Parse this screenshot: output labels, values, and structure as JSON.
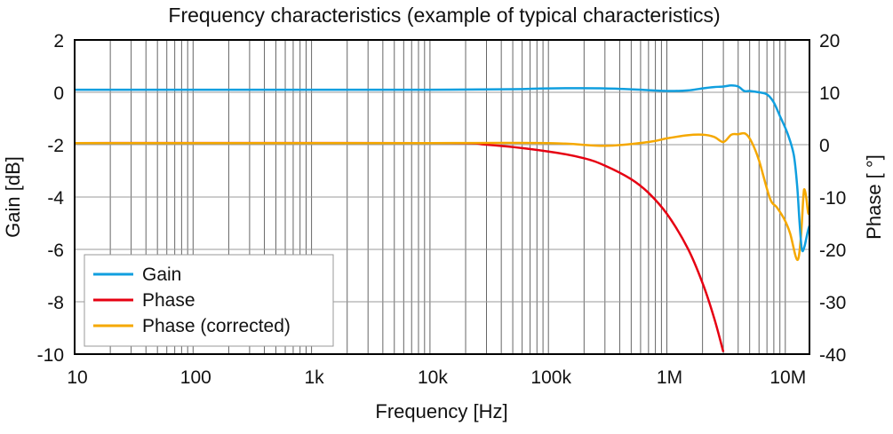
{
  "chart_data": {
    "type": "line",
    "title": "Frequency characteristics (example of typical characteristics)",
    "xlabel": "Frequency [Hz]",
    "ylabel": "Gain [dB]",
    "y2label": "Phase [ °]",
    "xscale": "log",
    "xlim": [
      10,
      16000000
    ],
    "ylim": [
      -10,
      2
    ],
    "y2lim": [
      -40,
      20
    ],
    "grid": true,
    "legend_position": "bottom-left",
    "x_ticks": [
      {
        "value": 10,
        "label": "10"
      },
      {
        "value": 100,
        "label": "100"
      },
      {
        "value": 1000,
        "label": "1k"
      },
      {
        "value": 10000,
        "label": "10k"
      },
      {
        "value": 100000,
        "label": "100k"
      },
      {
        "value": 1000000,
        "label": "1M"
      },
      {
        "value": 10000000,
        "label": "10M"
      }
    ],
    "y_ticks": [
      {
        "value": 2,
        "label": "2"
      },
      {
        "value": 0,
        "label": "0"
      },
      {
        "value": -2,
        "label": "-2"
      },
      {
        "value": -4,
        "label": "-4"
      },
      {
        "value": -6,
        "label": "-6"
      },
      {
        "value": -8,
        "label": "-8"
      },
      {
        "value": -10,
        "label": "-10"
      }
    ],
    "y2_ticks": [
      {
        "value": 20,
        "label": "20"
      },
      {
        "value": 10,
        "label": "10"
      },
      {
        "value": 0,
        "label": "0"
      },
      {
        "value": -10,
        "label": "-10"
      },
      {
        "value": -20,
        "label": "-20"
      },
      {
        "value": -30,
        "label": "-30"
      },
      {
        "value": -40,
        "label": "-40"
      }
    ],
    "series": [
      {
        "name": "Gain",
        "axis": "left",
        "color": "#109fdf",
        "x": [
          10,
          1000,
          10000,
          50000,
          100000,
          300000,
          700000,
          1000000,
          1500000,
          2000000,
          2500000,
          3000000,
          3500000,
          4000000,
          4500000,
          5000000,
          6000000,
          7000000,
          7900000,
          9000000,
          10500000,
          11800000,
          12600000,
          13200000,
          13800000,
          14500000,
          15500000,
          16000000
        ],
        "y": [
          0.1,
          0.1,
          0.1,
          0.12,
          0.15,
          0.15,
          0.08,
          0.05,
          0.07,
          0.15,
          0.2,
          0.22,
          0.26,
          0.22,
          0.05,
          0.05,
          0.0,
          -0.08,
          -0.35,
          -0.9,
          -1.6,
          -2.4,
          -3.6,
          -5.0,
          -6.0,
          -5.9,
          -5.3,
          -5.1
        ]
      },
      {
        "name": "Phase",
        "axis": "right",
        "color": "#e60012",
        "x": [
          10,
          10000,
          30000,
          100000,
          200000,
          300000,
          500000,
          700000,
          1000000,
          1500000,
          2000000,
          2500000,
          3000000
        ],
        "y": [
          0.3,
          0.3,
          0.0,
          -1.3,
          -2.6,
          -4.0,
          -6.6,
          -9.2,
          -13.2,
          -19.8,
          -26.4,
          -33.0,
          -39.6
        ]
      },
      {
        "name": "Phase (corrected)",
        "axis": "right",
        "color": "#f5a800",
        "x": [
          10,
          10000,
          100000,
          300000,
          700000,
          1000000,
          1500000,
          2000000,
          2500000,
          3000000,
          3500000,
          4000000,
          4600000,
          5200000,
          6000000,
          7400000,
          8500000,
          9800000,
          11000000,
          12600000,
          13500000,
          14200000,
          14500000,
          15000000,
          15600000,
          16000000
        ],
        "y": [
          0.3,
          0.3,
          0.3,
          -0.2,
          0.5,
          1.2,
          1.8,
          1.9,
          1.5,
          0.5,
          1.9,
          2.0,
          2.1,
          0.5,
          -3.0,
          -10.2,
          -12.0,
          -14.2,
          -17.0,
          -22.0,
          -18.0,
          -10.0,
          -8.5,
          -10.0,
          -13.0,
          -13.0
        ]
      }
    ]
  }
}
